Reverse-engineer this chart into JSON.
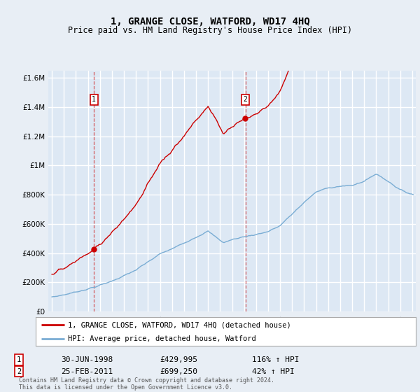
{
  "title": "1, GRANGE CLOSE, WATFORD, WD17 4HQ",
  "subtitle": "Price paid vs. HM Land Registry's House Price Index (HPI)",
  "background_color": "#e8eef5",
  "plot_bg_color": "#dde8f4",
  "grid_color": "#ffffff",
  "red_color": "#cc0000",
  "blue_color": "#7aadd4",
  "transaction1_year": 1998.5,
  "transaction1_price": 429995,
  "transaction1_date": "30-JUN-1998",
  "transaction1_hpi_text": "116% ↑ HPI",
  "transaction2_year": 2011.12,
  "transaction2_price": 699250,
  "transaction2_date": "25-FEB-2011",
  "transaction2_hpi_text": "42% ↑ HPI",
  "legend_line1": "1, GRANGE CLOSE, WATFORD, WD17 4HQ (detached house)",
  "legend_line2": "HPI: Average price, detached house, Watford",
  "footer": "Contains HM Land Registry data © Crown copyright and database right 2024.\nThis data is licensed under the Open Government Licence v3.0.",
  "ylim": [
    0,
    1650000
  ],
  "yticks": [
    0,
    200000,
    400000,
    600000,
    800000,
    1000000,
    1200000,
    1400000,
    1600000
  ],
  "xlim": [
    1994.7,
    2025.3
  ]
}
